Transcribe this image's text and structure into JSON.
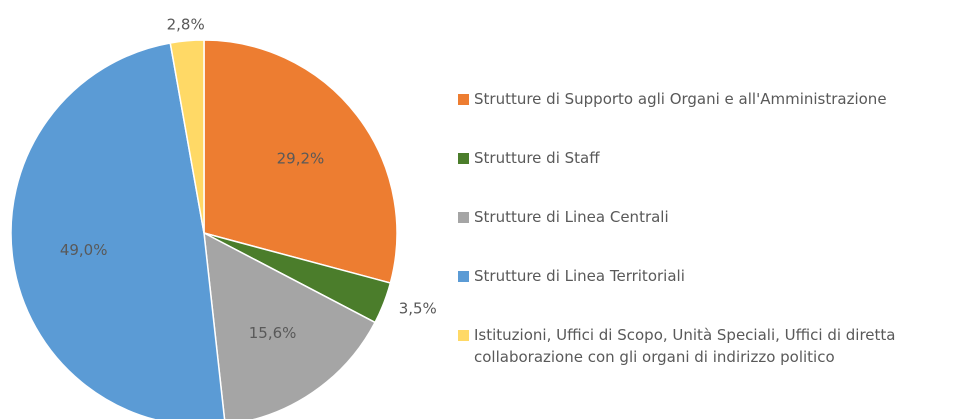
{
  "chart_data": {
    "type": "pie",
    "categories": [
      "Strutture di Supporto agli Organi e all'Amministrazione",
      "Strutture di Staff",
      "Strutture di Linea Centrali",
      "Strutture di Linea Territoriali",
      "Istituzioni, Uffici di Scopo, Unità Speciali, Uffici di diretta collaborazione con gli organi di indirizzo politico"
    ],
    "values": [
      29.2,
      3.5,
      15.6,
      49.0,
      2.8
    ],
    "value_labels": [
      "29,2%",
      "3,5%",
      "15,6%",
      "49,0%",
      "2,8%"
    ],
    "colors": [
      "#ED7D31",
      "#4B7D2B",
      "#A5A5A5",
      "#5B9BD5",
      "#FFD966"
    ],
    "legend": "right"
  }
}
